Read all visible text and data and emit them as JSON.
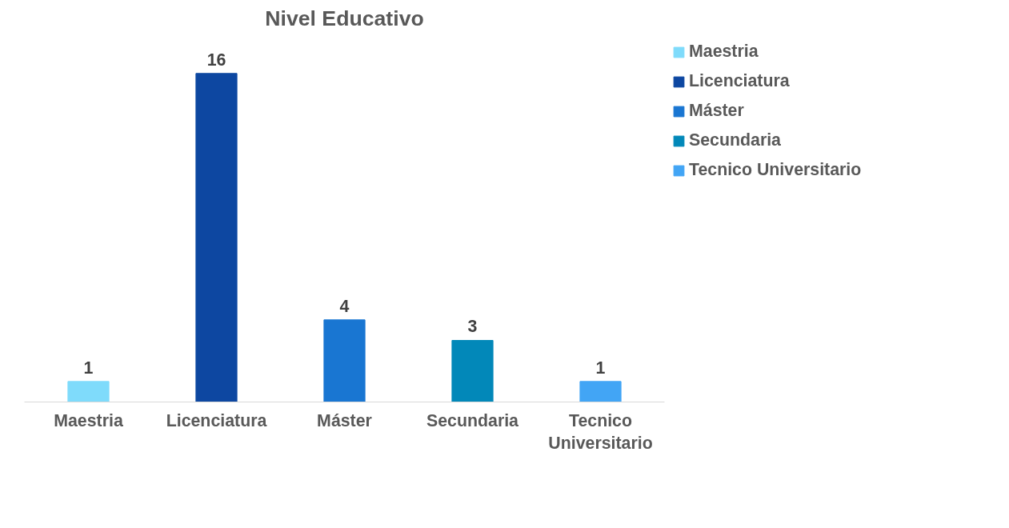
{
  "chart_data": {
    "type": "bar",
    "title": "Nivel Educativo",
    "categories": [
      "Maestria",
      "Licenciatura",
      "Máster",
      "Secundaria",
      "Tecnico Universitario"
    ],
    "series": [
      {
        "name": "Maestria",
        "color": "#7fdbfb",
        "values": [
          1,
          null,
          null,
          null,
          null
        ]
      },
      {
        "name": "Licenciatura",
        "color": "#0d47a1",
        "values": [
          null,
          16,
          null,
          null,
          null
        ]
      },
      {
        "name": "Máster",
        "color": "#1976d2",
        "values": [
          null,
          null,
          4,
          null,
          null
        ]
      },
      {
        "name": "Secundaria",
        "color": "#0288b9",
        "values": [
          null,
          null,
          null,
          3,
          null
        ]
      },
      {
        "name": "Tecnico Universitario",
        "color": "#42a5f5",
        "values": [
          null,
          null,
          null,
          null,
          1
        ]
      }
    ],
    "data_labels": true,
    "legend": "right",
    "grid": false,
    "tick_labels": "x"
  }
}
